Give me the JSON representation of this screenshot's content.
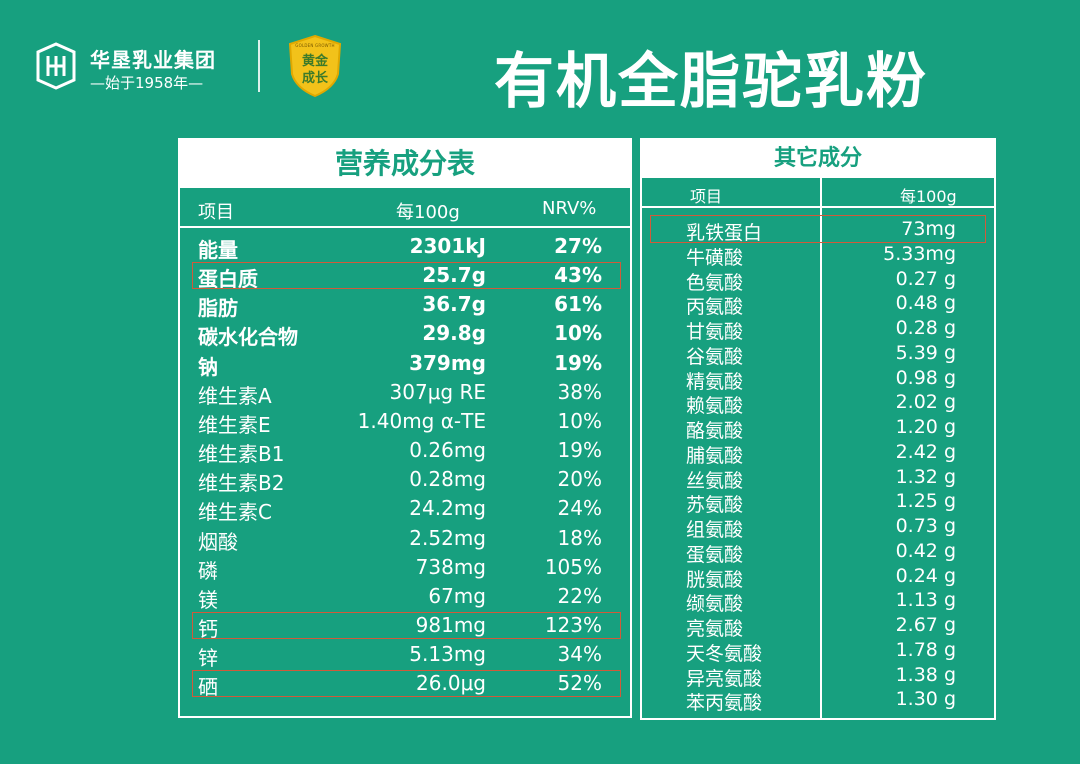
{
  "brand": {
    "name": "华垦乳业集团",
    "tagline": "—始于1958年—",
    "badge_en": "GOLDEN GROWTH",
    "badge_line1": "黄金",
    "badge_line2": "成长"
  },
  "headline": "有机全脂驼乳粉",
  "nutrition": {
    "title": "营养成分表",
    "headers": {
      "item": "项目",
      "per100g": "每100g",
      "nrv": "NRV%"
    },
    "rows": [
      {
        "name": "能量",
        "value": "2301kJ",
        "nrv": "27%",
        "bold": true
      },
      {
        "name": "蛋白质",
        "value": "25.7g",
        "nrv": "43%",
        "bold": true
      },
      {
        "name": "脂肪",
        "value": "36.7g",
        "nrv": "61%",
        "bold": true
      },
      {
        "name": "碳水化合物",
        "value": "29.8g",
        "nrv": "10%",
        "bold": true
      },
      {
        "name": "钠",
        "value": "379mg",
        "nrv": "19%",
        "bold": true
      },
      {
        "name": "维生素A",
        "value": "307μg RE",
        "nrv": "38%"
      },
      {
        "name": "维生素E",
        "value": "1.40mg α-TE",
        "nrv": "10%"
      },
      {
        "name": "维生素B1",
        "value": "0.26mg",
        "nrv": "19%"
      },
      {
        "name": "维生素B2",
        "value": "0.28mg",
        "nrv": "20%"
      },
      {
        "name": "维生素C",
        "value": "24.2mg",
        "nrv": "24%"
      },
      {
        "name": "烟酸",
        "value": "2.52mg",
        "nrv": "18%"
      },
      {
        "name": "磷",
        "value": "738mg",
        "nrv": "105%"
      },
      {
        "name": "镁",
        "value": "67mg",
        "nrv": "22%"
      },
      {
        "name": "钙",
        "value": "981mg",
        "nrv": "123%"
      },
      {
        "name": "锌",
        "value": "5.13mg",
        "nrv": "34%"
      },
      {
        "name": "硒",
        "value": "26.0μg",
        "nrv": "52%"
      }
    ]
  },
  "other": {
    "title": "其它成分",
    "headers": {
      "item": "项目",
      "per100g": "每100g"
    },
    "rows": [
      {
        "name": "乳铁蛋白",
        "value": "73mg"
      },
      {
        "name": "牛磺酸",
        "value": "5.33mg"
      },
      {
        "name": "色氨酸",
        "value": "0.27 g"
      },
      {
        "name": "丙氨酸",
        "value": "0.48 g"
      },
      {
        "name": "甘氨酸",
        "value": "0.28 g"
      },
      {
        "name": "谷氨酸",
        "value": "5.39 g"
      },
      {
        "name": "精氨酸",
        "value": "0.98 g"
      },
      {
        "name": "赖氨酸",
        "value": "2.02 g"
      },
      {
        "name": "酪氨酸",
        "value": "1.20 g"
      },
      {
        "name": "脯氨酸",
        "value": "2.42 g"
      },
      {
        "name": "丝氨酸",
        "value": "1.32 g"
      },
      {
        "name": "苏氨酸",
        "value": "1.25 g"
      },
      {
        "name": "组氨酸",
        "value": "0.73 g"
      },
      {
        "name": "蛋氨酸",
        "value": "0.42 g"
      },
      {
        "name": "胱氨酸",
        "value": "0.24 g"
      },
      {
        "name": "缬氨酸",
        "value": "1.13 g"
      },
      {
        "name": "亮氨酸",
        "value": "2.67 g"
      },
      {
        "name": "天冬氨酸",
        "value": "1.78 g"
      },
      {
        "name": "异亮氨酸",
        "value": "1.38 g"
      },
      {
        "name": "苯丙氨酸",
        "value": "1.30 g"
      }
    ]
  },
  "colors": {
    "background": "#17a07f",
    "highlight": "#d15a3a",
    "badge": "#f2c21a"
  }
}
